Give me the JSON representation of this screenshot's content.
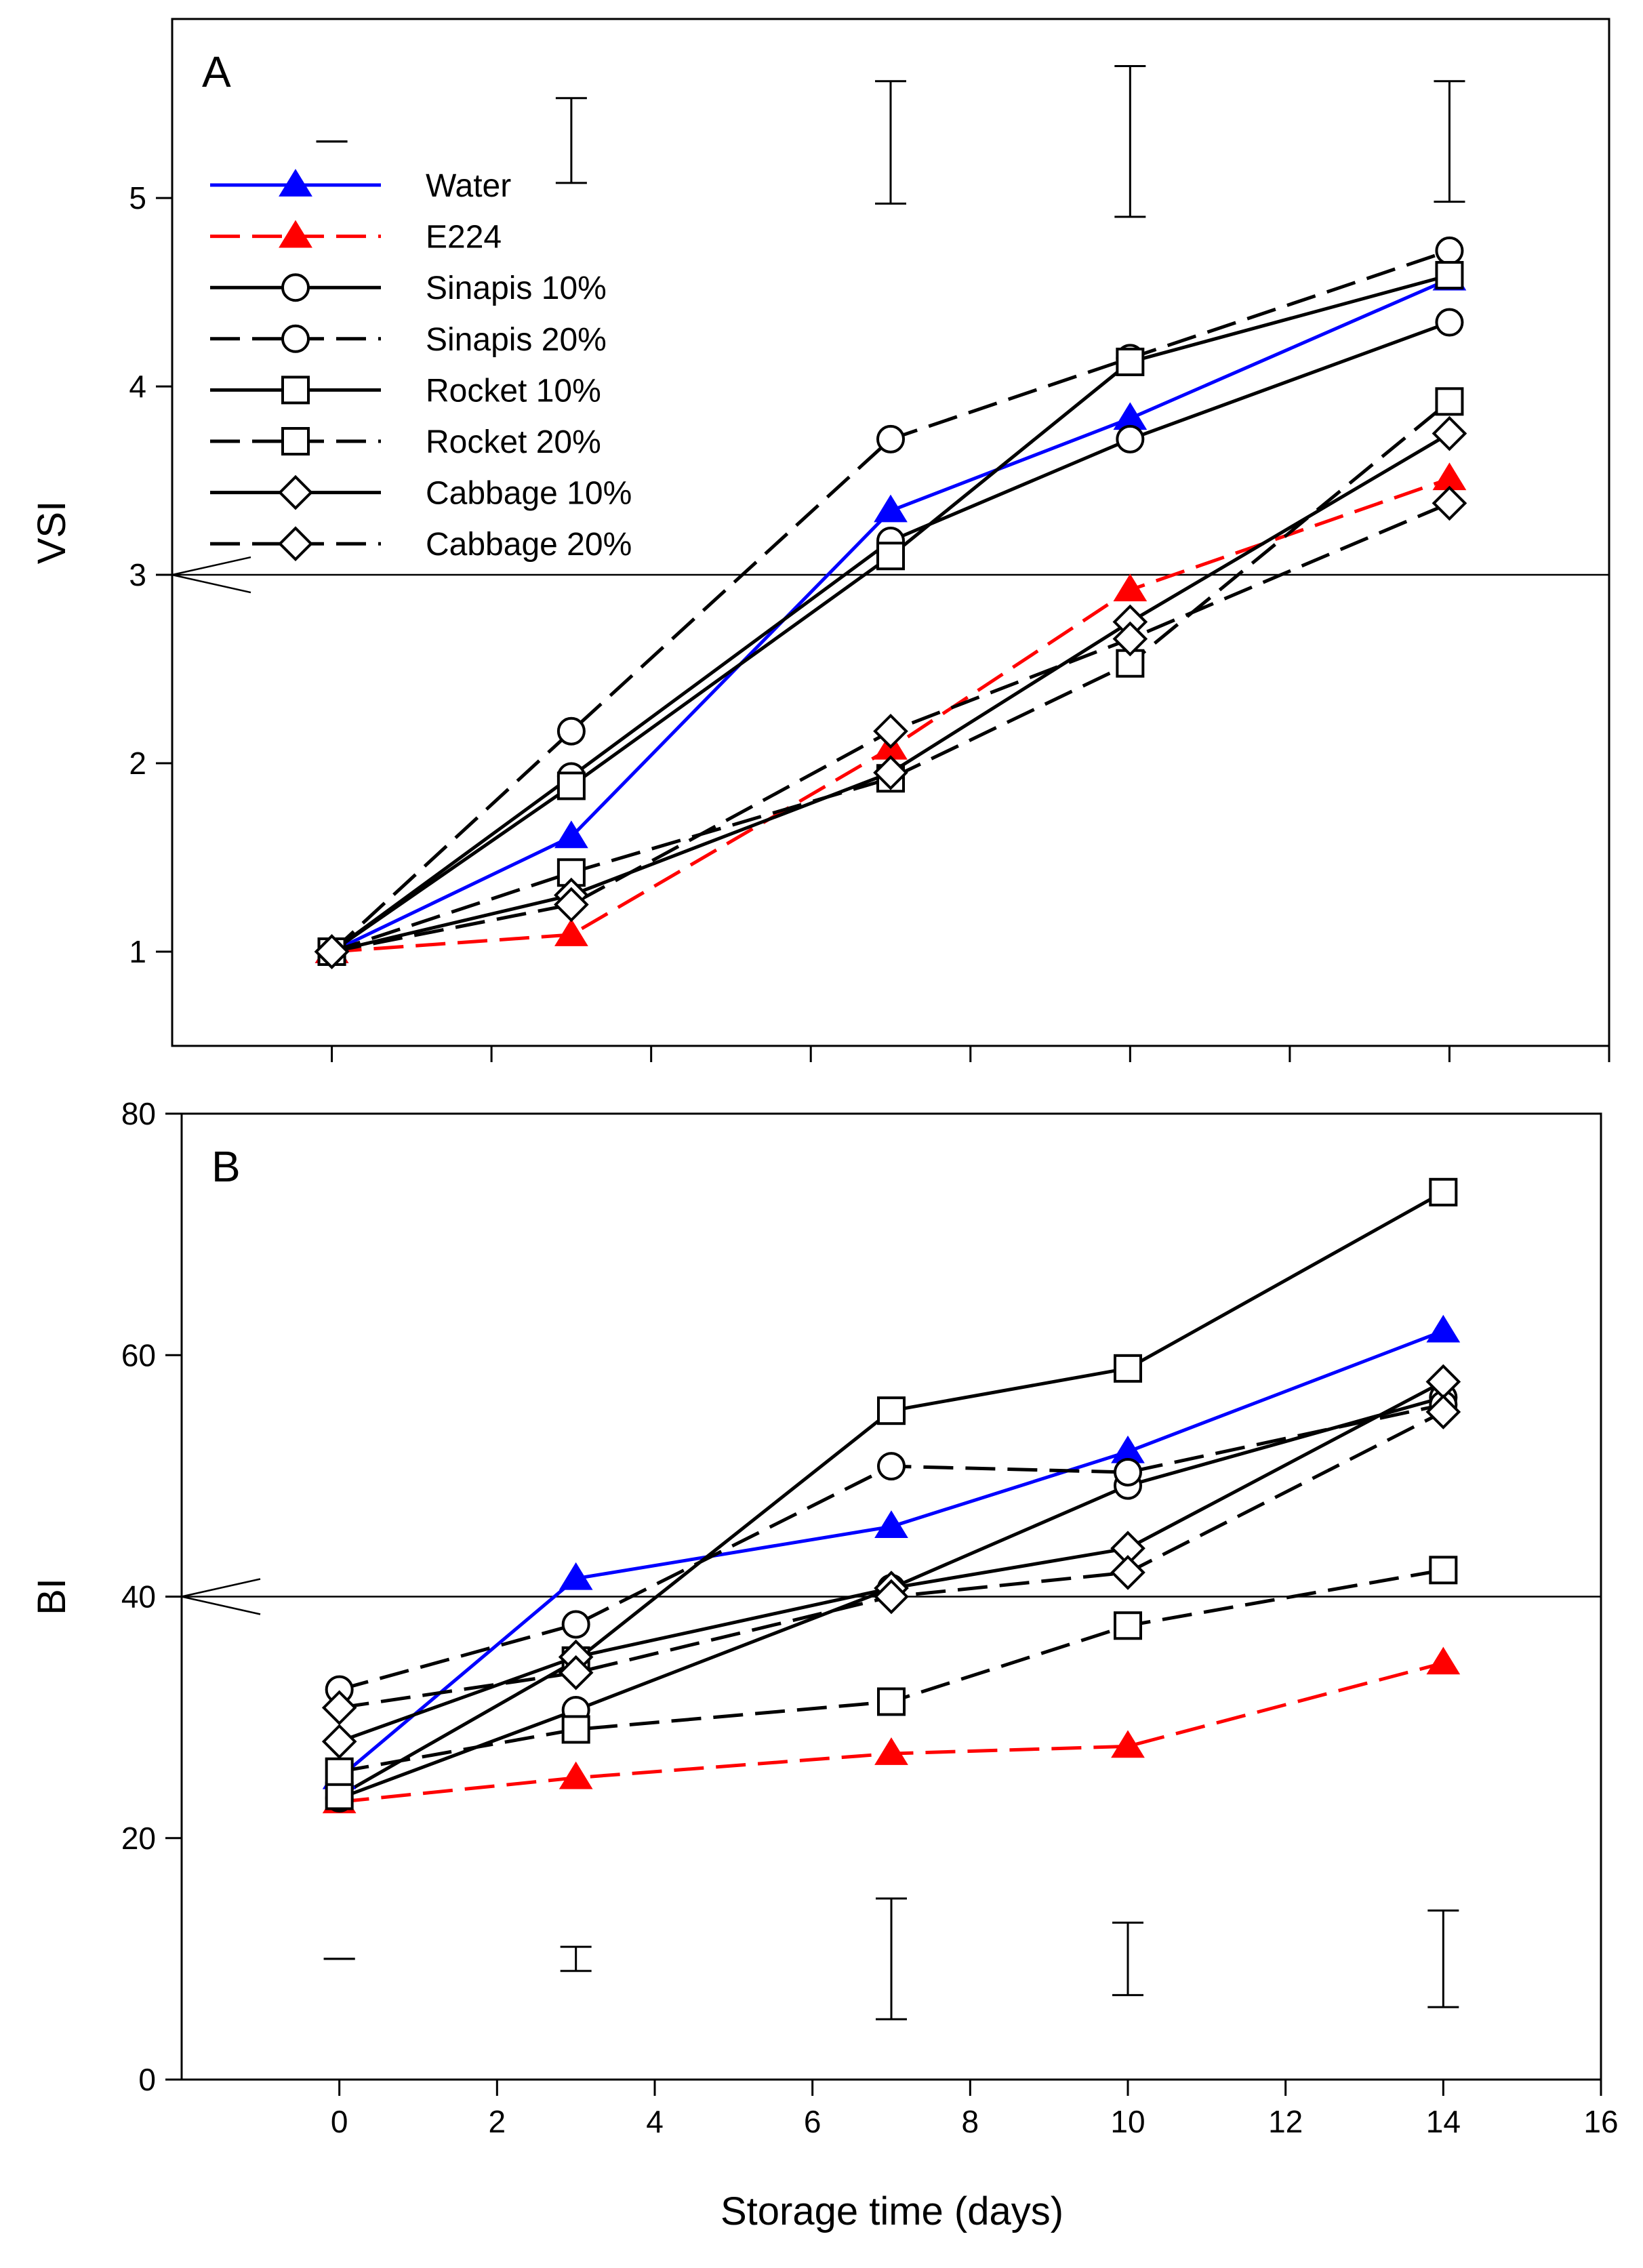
{
  "figure": {
    "xlabel": "Storage time (days)"
  },
  "chart_data": [
    {
      "type": "line",
      "panel_label": "A",
      "xlabel": "",
      "ylabel": "VSI",
      "xlim": [
        -2,
        16
      ],
      "ylim": [
        0.5,
        5.95
      ],
      "x_ticks": [
        0,
        2,
        4,
        6,
        8,
        10,
        12,
        14,
        16
      ],
      "y_ticks": [
        1,
        2,
        3,
        4,
        5
      ],
      "show_x_tick_labels": false,
      "grid": false,
      "legend_position": "top-left",
      "reference_line": 3,
      "x": [
        0,
        3,
        7,
        10,
        14
      ],
      "series": [
        {
          "name": "Water",
          "color": "#0000ff",
          "dash": "solid",
          "marker": "triangle",
          "fill": "#0000ff",
          "values": [
            1.0,
            1.61,
            3.34,
            3.83,
            4.57
          ]
        },
        {
          "name": "E224",
          "color": "#ff0000",
          "dash": "dashed",
          "marker": "triangle",
          "fill": "#ff0000",
          "values": [
            1.0,
            1.09,
            2.08,
            2.92,
            3.51
          ]
        },
        {
          "name": "Sinapis 10%",
          "color": "#000000",
          "dash": "solid",
          "marker": "circle",
          "fill": "#ffffff",
          "values": [
            1.0,
            1.93,
            3.18,
            3.72,
            4.34
          ]
        },
        {
          "name": "Sinapis 20%",
          "color": "#000000",
          "dash": "dashed",
          "marker": "circle",
          "fill": "#ffffff",
          "values": [
            1.0,
            2.17,
            3.72,
            4.15,
            4.72
          ]
        },
        {
          "name": "Rocket 10%",
          "color": "#000000",
          "dash": "solid",
          "marker": "square",
          "fill": "#ffffff",
          "values": [
            1.0,
            1.88,
            3.1,
            4.13,
            4.59
          ]
        },
        {
          "name": "Rocket 20%",
          "color": "#000000",
          "dash": "dashed",
          "marker": "square",
          "fill": "#ffffff",
          "values": [
            1.0,
            1.42,
            1.92,
            2.53,
            3.92
          ]
        },
        {
          "name": "Cabbage 10%",
          "color": "#000000",
          "dash": "solid",
          "marker": "diamond",
          "fill": "#ffffff",
          "values": [
            1.0,
            1.3,
            1.95,
            2.75,
            3.75
          ]
        },
        {
          "name": "Cabbage 20%",
          "color": "#000000",
          "dash": "dashed",
          "marker": "diamond",
          "fill": "#ffffff",
          "values": [
            1.0,
            1.25,
            2.17,
            2.66,
            3.38
          ]
        }
      ],
      "error_bars": [
        {
          "x": 0,
          "low": 5.3,
          "high": 5.3
        },
        {
          "x": 3,
          "low": 5.08,
          "high": 5.53
        },
        {
          "x": 7,
          "low": 4.97,
          "high": 5.62
        },
        {
          "x": 10,
          "low": 4.9,
          "high": 5.7
        },
        {
          "x": 14,
          "low": 4.98,
          "high": 5.62
        }
      ]
    },
    {
      "type": "line",
      "panel_label": "B",
      "xlabel": "Storage time (days)",
      "ylabel": "BI",
      "xlim": [
        -2,
        16
      ],
      "ylim": [
        0,
        80
      ],
      "x_ticks": [
        0,
        2,
        4,
        6,
        8,
        10,
        12,
        14,
        16
      ],
      "y_ticks": [
        0,
        20,
        40,
        60,
        80
      ],
      "show_x_tick_labels": true,
      "grid": false,
      "reference_line": 40,
      "x": [
        0,
        3,
        7,
        10,
        14
      ],
      "series": [
        {
          "name": "Water",
          "color": "#0000ff",
          "dash": "solid",
          "marker": "triangle",
          "fill": "#0000ff",
          "values": [
            25.0,
            41.5,
            45.8,
            52.0,
            62.0
          ]
        },
        {
          "name": "E224",
          "color": "#ff0000",
          "dash": "dashed",
          "marker": "triangle",
          "fill": "#ff0000",
          "values": [
            23.0,
            25.0,
            27.0,
            27.6,
            34.5
          ]
        },
        {
          "name": "Sinapis 10%",
          "color": "#000000",
          "dash": "solid",
          "marker": "circle",
          "fill": "#ffffff",
          "values": [
            23.3,
            30.6,
            40.7,
            49.2,
            56.5
          ]
        },
        {
          "name": "Sinapis 20%",
          "color": "#000000",
          "dash": "dashed",
          "marker": "circle",
          "fill": "#ffffff",
          "values": [
            32.3,
            37.7,
            50.8,
            50.3,
            55.9
          ]
        },
        {
          "name": "Rocket 10%",
          "color": "#000000",
          "dash": "solid",
          "marker": "square",
          "fill": "#ffffff",
          "values": [
            23.5,
            34.7,
            55.4,
            58.9,
            73.5
          ]
        },
        {
          "name": "Rocket 20%",
          "color": "#000000",
          "dash": "dashed",
          "marker": "square",
          "fill": "#ffffff",
          "values": [
            25.5,
            29.0,
            31.3,
            37.6,
            42.2
          ]
        },
        {
          "name": "Cabbage 10%",
          "color": "#000000",
          "dash": "solid",
          "marker": "diamond",
          "fill": "#ffffff",
          "values": [
            28.0,
            35.0,
            40.7,
            44.0,
            57.8
          ]
        },
        {
          "name": "Cabbage 20%",
          "color": "#000000",
          "dash": "dashed",
          "marker": "diamond",
          "fill": "#ffffff",
          "values": [
            30.8,
            33.7,
            40.0,
            42.0,
            55.3
          ]
        }
      ],
      "error_bars": [
        {
          "x": 0,
          "low": 10.0,
          "high": 10.0
        },
        {
          "x": 3,
          "low": 9.0,
          "high": 11.0
        },
        {
          "x": 7,
          "low": 5.0,
          "high": 15.0
        },
        {
          "x": 10,
          "low": 7.0,
          "high": 13.0
        },
        {
          "x": 14,
          "low": 6.0,
          "high": 14.0
        }
      ]
    }
  ]
}
